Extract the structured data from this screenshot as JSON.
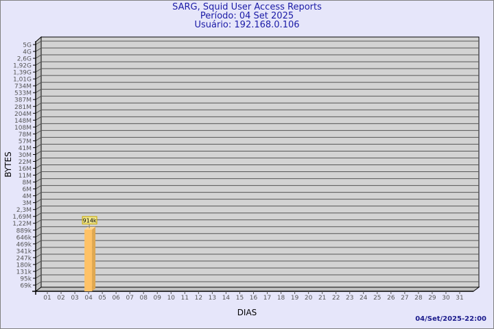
{
  "chart_data": {
    "type": "bar",
    "title": "SARG, Squid User Access Reports",
    "subtitle": [
      "Período: 04 Set 2025",
      "Usuário: 192.168.0.106"
    ],
    "xlabel": "DIAS",
    "ylabel": "BYTES",
    "yscale": "log",
    "categories": [
      "01",
      "02",
      "03",
      "04",
      "05",
      "06",
      "07",
      "08",
      "09",
      "10",
      "11",
      "12",
      "13",
      "14",
      "15",
      "16",
      "17",
      "18",
      "19",
      "20",
      "21",
      "22",
      "23",
      "24",
      "25",
      "26",
      "27",
      "28",
      "29",
      "30",
      "31"
    ],
    "values": [
      null,
      null,
      null,
      914000,
      null,
      null,
      null,
      null,
      null,
      null,
      null,
      null,
      null,
      null,
      null,
      null,
      null,
      null,
      null,
      null,
      null,
      null,
      null,
      null,
      null,
      null,
      null,
      null,
      null,
      null,
      null
    ],
    "data_labels": {
      "04": "914k"
    },
    "ytick_labels": [
      "5G",
      "4G",
      "2,6G",
      "1,92G",
      "1,39G",
      "1,01G",
      "734M",
      "533M",
      "387M",
      "281M",
      "204M",
      "148M",
      "108M",
      "78M",
      "57M",
      "41M",
      "30M",
      "22M",
      "16M",
      "11M",
      "8M",
      "6M",
      "4M",
      "3M",
      "2,3M",
      "1,69M",
      "1,22M",
      "889k",
      "646k",
      "469k",
      "341k",
      "247k",
      "180k",
      "131k",
      "95k",
      "69k"
    ],
    "ytick_values": [
      5000000000,
      4000000000,
      2600000000,
      1920000000,
      1390000000,
      1010000000,
      734000000,
      533000000,
      387000000,
      281000000,
      204000000,
      148000000,
      108000000,
      78000000,
      57000000,
      41000000,
      30000000,
      22000000,
      16000000,
      11000000,
      8000000,
      6000000,
      4000000,
      3000000,
      2300000,
      1690000,
      1220000,
      889000,
      646000,
      469000,
      341000,
      247000,
      180000,
      131000,
      95000,
      69000
    ],
    "grid": true,
    "colors": {
      "bar": "#ffc266",
      "bar_side": "#e0a850",
      "wall": "#d3d3d3",
      "side_wall": "#c0c0c0",
      "background": "#e6e6fa",
      "title": "#1a1aa6",
      "label_box": "#f0e68c"
    }
  },
  "footer": "04/Set/2025-22:00"
}
